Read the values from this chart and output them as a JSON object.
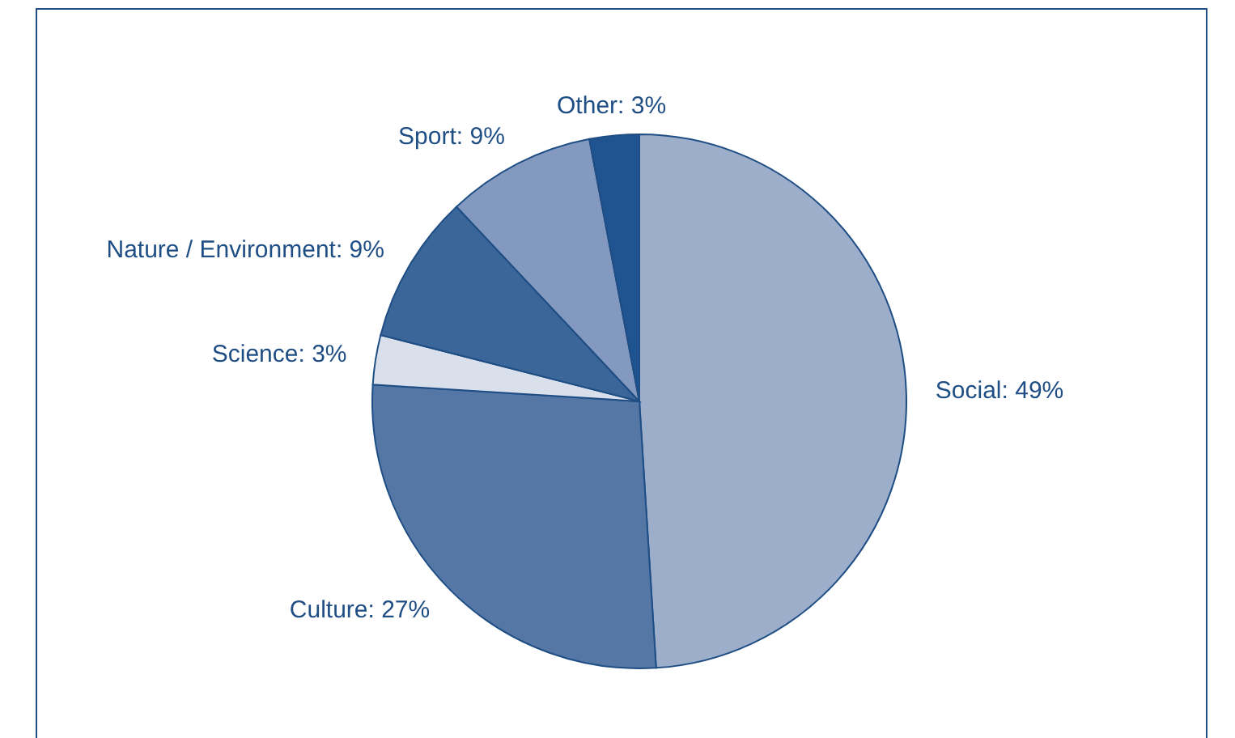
{
  "chart_data": {
    "type": "pie",
    "categories": [
      "Social",
      "Culture",
      "Science",
      "Nature / Environment",
      "Sport",
      "Other"
    ],
    "values": [
      49,
      27,
      3,
      9,
      9,
      3
    ],
    "value_labels": [
      "49%",
      "27%",
      "3%",
      "9%",
      "9%",
      "3%"
    ],
    "colors": [
      "#9daecb",
      "#5477a6",
      "#d9dfeb",
      "#3b6699",
      "#8499bf",
      "#1f5490"
    ]
  }
}
